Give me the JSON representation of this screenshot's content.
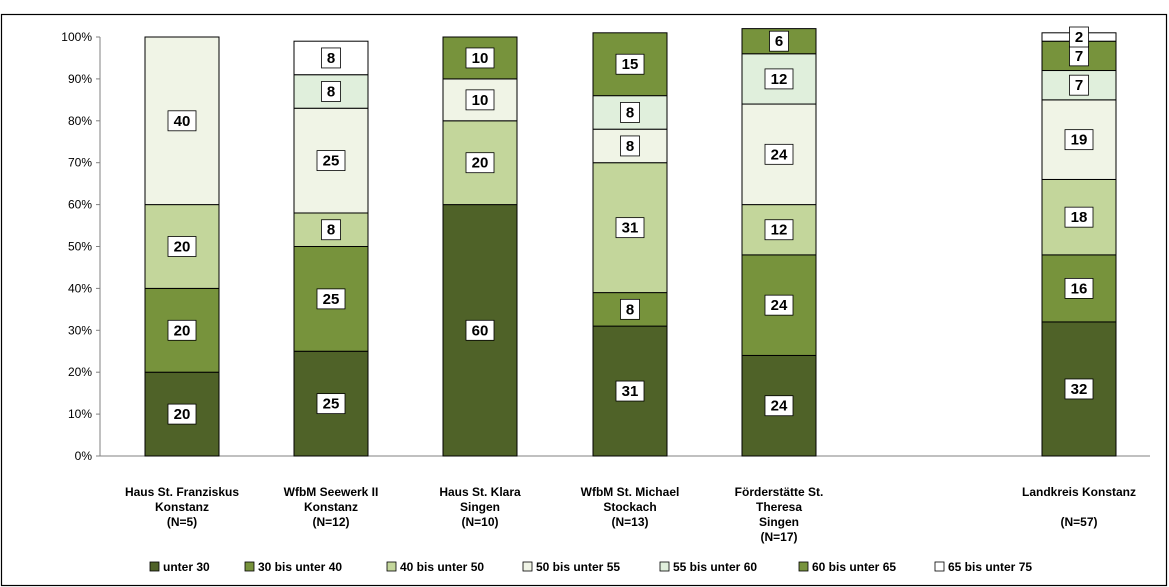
{
  "chart_data": {
    "type": "bar",
    "stacked": true,
    "percent": true,
    "title": "",
    "xlabel": "",
    "ylabel": "",
    "ylim": [
      0,
      100
    ],
    "ytick_values": [
      0,
      10,
      20,
      30,
      40,
      50,
      60,
      70,
      80,
      90,
      100
    ],
    "ytick_labels": [
      "0%",
      "10%",
      "20%",
      "30%",
      "40%",
      "50%",
      "60%",
      "70%",
      "80%",
      "90%",
      "100%"
    ],
    "grid": false,
    "legend_position": "bottom",
    "categories": [
      [
        "Haus St. Franziskus",
        "Konstanz",
        "(N=5)"
      ],
      [
        "WfbM Seewerk II",
        "Konstanz",
        "(N=12)"
      ],
      [
        "Haus St. Klara",
        "Singen",
        "(N=10)"
      ],
      [
        "WfbM St. Michael",
        "Stockach",
        "(N=13)"
      ],
      [
        "Förderstätte St.",
        "Theresa",
        "Singen",
        "(N=17)"
      ],
      [
        "Landkreis Konstanz",
        "",
        "(N=57)"
      ]
    ],
    "series": [
      {
        "name": "unter 30",
        "color": "#4f6228",
        "values": [
          20,
          25,
          60,
          31,
          24,
          32
        ]
      },
      {
        "name": "30 bis unter 40",
        "color": "#77933c",
        "values": [
          20,
          25,
          0,
          8,
          24,
          16
        ]
      },
      {
        "name": "40 bis unter 50",
        "color": "#c3d69b",
        "values": [
          20,
          8,
          20,
          31,
          12,
          18
        ]
      },
      {
        "name": "50 bis unter 55",
        "color": "#f0f4e6",
        "values": [
          40,
          25,
          10,
          8,
          24,
          19
        ]
      },
      {
        "name": "55 bis unter 60",
        "color": "#e0efdc",
        "values": [
          0,
          8,
          0,
          8,
          12,
          7
        ]
      },
      {
        "name": "60 bis unter 65",
        "color": "#77933c",
        "values": [
          0,
          0,
          10,
          15,
          6,
          7
        ]
      },
      {
        "name": "65 bis unter 75",
        "color": "#ffffff",
        "values": [
          0,
          8,
          0,
          0,
          0,
          2
        ]
      }
    ]
  }
}
